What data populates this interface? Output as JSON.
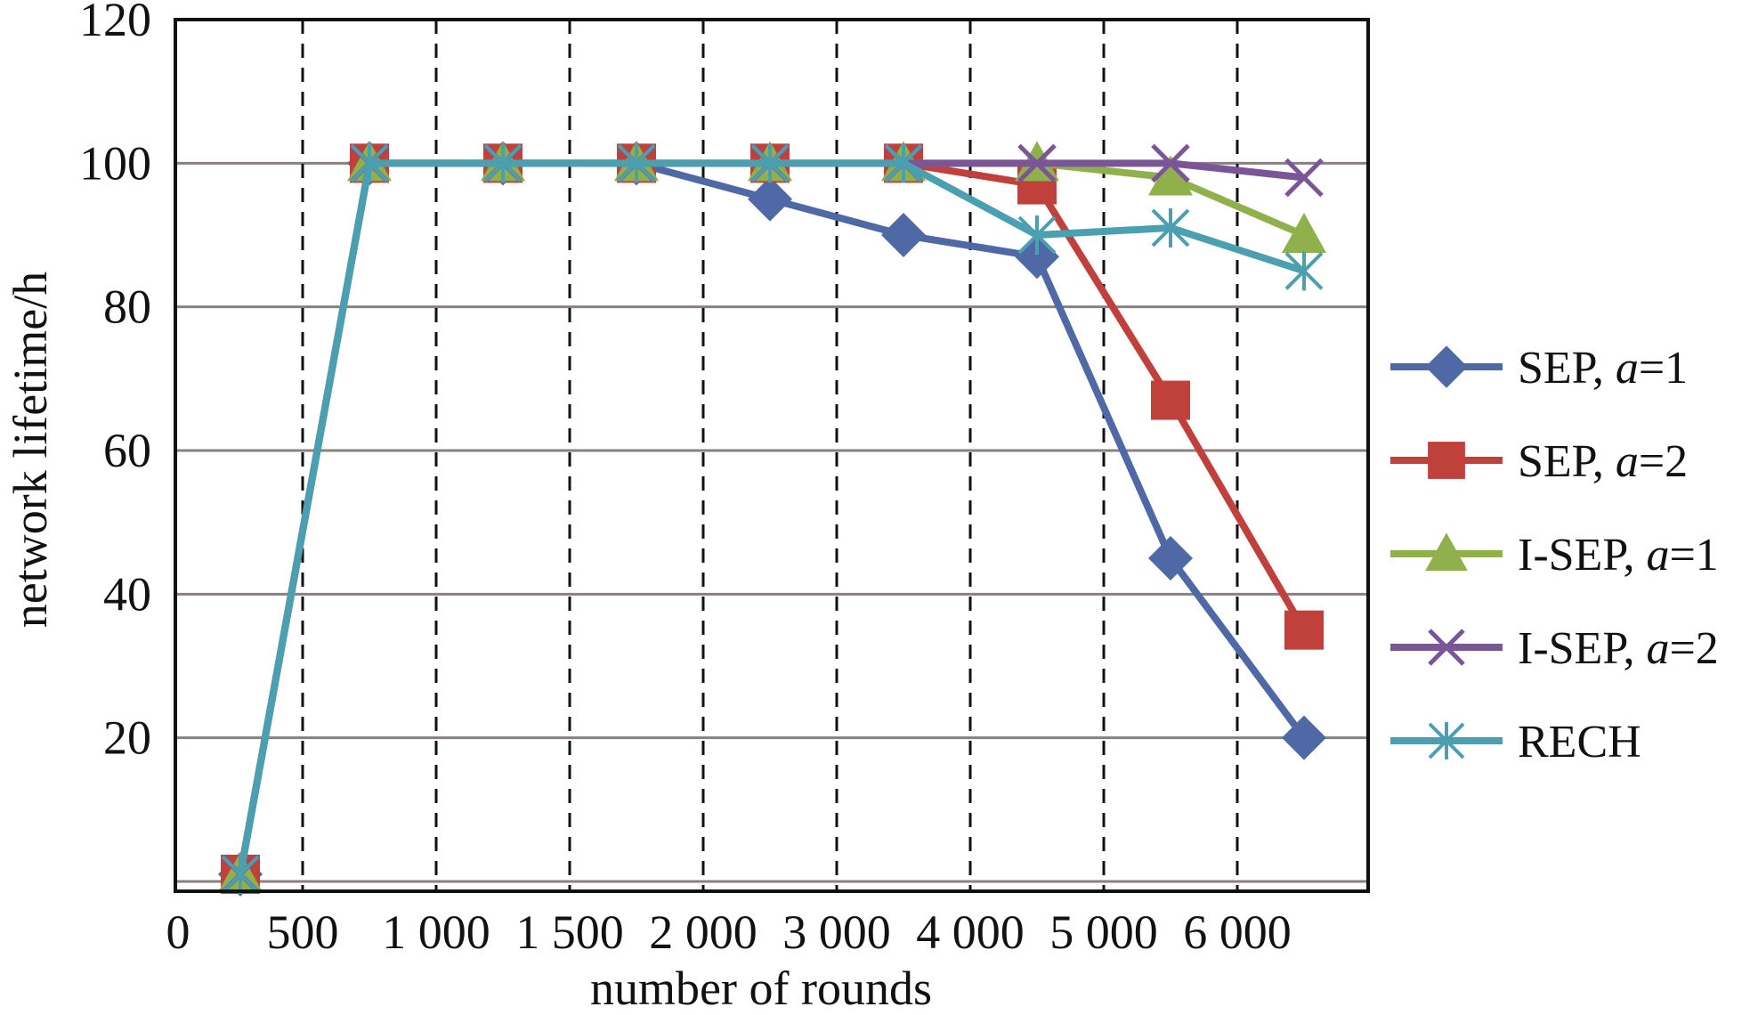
{
  "chart_data": {
    "type": "line",
    "xlabel": "number of rounds",
    "ylabel": "network lifetime/h",
    "x_tick_labels": [
      "0",
      "500",
      "1 000",
      "1 500",
      "2 000",
      "3 000",
      "4 000",
      "5 000",
      "6 000"
    ],
    "categories": [
      "250",
      "750",
      "1 250",
      "1 750",
      "2 500",
      "3 500",
      "4 500",
      "5 500",
      "6 500"
    ],
    "y_ticks": [
      20,
      40,
      60,
      80,
      100,
      120
    ],
    "ylim": [
      0,
      120
    ],
    "grid": {
      "horizontal": true,
      "vertical_dashed": true
    },
    "legend_position": "right",
    "series": [
      {
        "name": "SEP, a=1",
        "label": "SEP, ",
        "param": "a",
        "eq": "=1",
        "color": "#4f69a6",
        "marker": "diamond",
        "values": [
          1,
          100,
          100,
          100,
          95,
          90,
          87,
          45,
          20
        ]
      },
      {
        "name": "SEP, a=2",
        "label": "SEP, ",
        "param": "a",
        "eq": "=2",
        "color": "#c0413c",
        "marker": "square",
        "values": [
          1,
          100,
          100,
          100,
          100,
          100,
          97,
          67,
          35
        ]
      },
      {
        "name": "I-SEP, a=1",
        "label": "I-SEP, ",
        "param": "a",
        "eq": "=1",
        "color": "#8fb04a",
        "marker": "triangle",
        "values": [
          1,
          100,
          100,
          100,
          100,
          100,
          100,
          98,
          90
        ]
      },
      {
        "name": "I-SEP, a=2",
        "label": "I-SEP, ",
        "param": "a",
        "eq": "=2",
        "color": "#7a5597",
        "marker": "x",
        "values": [
          1,
          100,
          100,
          100,
          100,
          100,
          100,
          100,
          98
        ]
      },
      {
        "name": "RECH",
        "label": "RECH",
        "param": "",
        "eq": "",
        "color": "#4aa0b0",
        "marker": "asterisk",
        "values": [
          1,
          100,
          100,
          100,
          100,
          100,
          90,
          91,
          85
        ]
      }
    ]
  }
}
